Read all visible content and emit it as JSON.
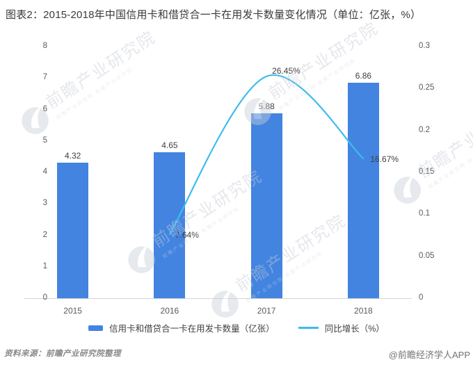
{
  "title": "图表2：2015-2018年中国信用卡和借贷合一卡在用发卡数量变化情况（单位：亿张，%）",
  "chart_data": {
    "type": "bar",
    "combo": "bar+line",
    "title": "图表2：2015-2018年中国信用卡和借贷合一卡在用发卡数量变化情况（单位：亿张，%）",
    "categories": [
      "2015",
      "2016",
      "2017",
      "2018"
    ],
    "series": [
      {
        "name": "信用卡和借贷合一卡在用发卡数量（亿张）",
        "type": "bar",
        "axis": "left",
        "values": [
          4.32,
          4.65,
          5.88,
          6.86
        ],
        "point_labels": [
          "4.32",
          "4.65",
          "5.88",
          "6.86"
        ],
        "color": "#4284E0"
      },
      {
        "name": "同比增长（%）",
        "type": "line",
        "axis": "right",
        "categories": [
          "2016",
          "2017",
          "2018"
        ],
        "values_pct": [
          7.64,
          26.45,
          16.67
        ],
        "point_labels": [
          "7.64%",
          "26.45%",
          "16.67%"
        ],
        "color": "#3DBBEE"
      }
    ],
    "left_axis": {
      "min": 0,
      "max": 8,
      "ticks": [
        "0",
        "1",
        "2",
        "3",
        "4",
        "5",
        "6",
        "7",
        "8"
      ]
    },
    "right_axis": {
      "min": 0,
      "max": 0.3,
      "ticks": [
        "0",
        "0.05",
        "0.1",
        "0.15",
        "0.2",
        "0.25",
        "0.3"
      ]
    },
    "grid": false,
    "legend_position": "bottom"
  },
  "footer": {
    "source": "资料来源：前瞻产业研究院整理",
    "credit": "@前瞻经济学人APP"
  },
  "watermark": {
    "text": "前瞻产业研究院"
  }
}
